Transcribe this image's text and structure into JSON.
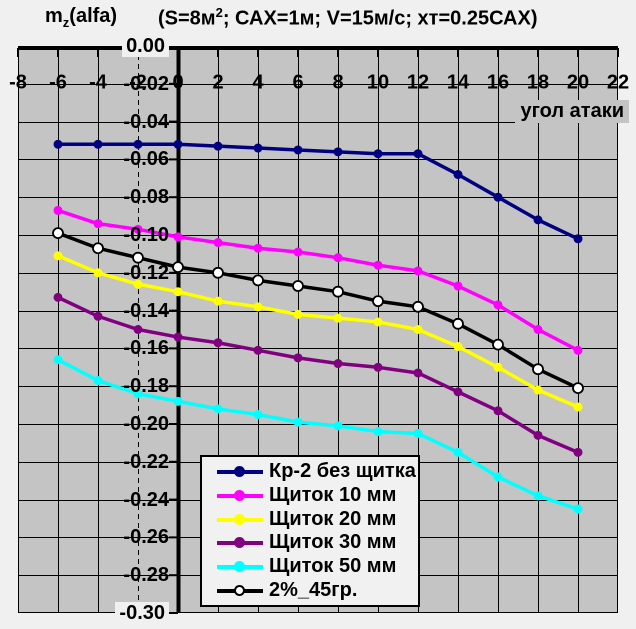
{
  "page_bg": "#f0f0f0",
  "title": {
    "m": "m",
    "sub": "z",
    "alfa": "(alfa)",
    "cond_pre": "(S=8м",
    "cond_sup": "2",
    "cond_post": "; САХ=1м; V=15м/с; хт=0.25САХ)"
  },
  "chart_data": {
    "type": "line",
    "title": "mz(alfa)  (S=8м²; САХ=1м; V=15м/с; хт=0.25САХ)",
    "xlabel": "угол атаки",
    "ylabel": "mz",
    "xlim": [
      -8,
      22
    ],
    "ylim": [
      -0.3,
      0.0
    ],
    "grid": true,
    "plot_bg": "#c4c4c4",
    "grid_color": "#000000",
    "legend_position": "inside-bottom-center",
    "x_ticks": [
      -8,
      -6,
      -4,
      -2,
      0,
      2,
      4,
      6,
      8,
      10,
      12,
      14,
      16,
      18,
      20,
      22
    ],
    "y_tick_labels": [
      "0.00",
      "-0.02",
      "-0.04",
      "-0.06",
      "-0.08",
      "-0.10",
      "-0.12",
      "-0.14",
      "-0.16",
      "-0.18",
      "-0.20",
      "-0.22",
      "-0.24",
      "-0.26",
      "-0.28",
      "-0.30"
    ],
    "x": [
      -6,
      -4,
      -2,
      0,
      2,
      4,
      6,
      8,
      10,
      12,
      14,
      16,
      18,
      20
    ],
    "series": [
      {
        "id": "kr2",
        "name": "Кр-2 без щитка",
        "color": "#000080",
        "marker": "circle",
        "marker_fill": "#000080",
        "values": [
          -0.052,
          -0.052,
          -0.052,
          -0.052,
          -0.053,
          -0.054,
          -0.055,
          -0.056,
          -0.057,
          -0.057,
          -0.068,
          -0.08,
          -0.092,
          -0.102
        ]
      },
      {
        "id": "s10",
        "name": "Щиток 10 мм",
        "color": "#ff00ff",
        "marker": "circle",
        "marker_fill": "#ff00ff",
        "values": [
          -0.087,
          -0.094,
          -0.097,
          -0.101,
          -0.104,
          -0.107,
          -0.109,
          -0.112,
          -0.116,
          -0.119,
          -0.127,
          -0.137,
          -0.15,
          -0.161
        ]
      },
      {
        "id": "s20",
        "name": "Щиток 20 мм",
        "color": "#ffff00",
        "marker": "circle",
        "marker_fill": "#ffff00",
        "values": [
          -0.111,
          -0.12,
          -0.126,
          -0.13,
          -0.135,
          -0.138,
          -0.142,
          -0.144,
          -0.146,
          -0.15,
          -0.159,
          -0.17,
          -0.182,
          -0.191
        ]
      },
      {
        "id": "s30",
        "name": "Щиток 30 мм",
        "color": "#800080",
        "marker": "circle",
        "marker_fill": "#800080",
        "values": [
          -0.133,
          -0.143,
          -0.15,
          -0.154,
          -0.157,
          -0.161,
          -0.165,
          -0.168,
          -0.17,
          -0.173,
          -0.183,
          -0.193,
          -0.206,
          -0.215
        ]
      },
      {
        "id": "s50",
        "name": "Щиток 50 мм",
        "color": "#00ffff",
        "marker": "circle",
        "marker_fill": "#00ffff",
        "values": [
          -0.166,
          -0.177,
          -0.184,
          -0.188,
          -0.192,
          -0.195,
          -0.199,
          -0.201,
          -0.204,
          -0.205,
          -0.215,
          -0.228,
          -0.238,
          -0.245
        ]
      },
      {
        "id": "p2",
        "name": "2%_45гр.",
        "color": "#000000",
        "marker": "circle",
        "marker_fill": "#ffffff",
        "marker_stroke": "#000000",
        "values": [
          -0.099,
          -0.107,
          -0.112,
          -0.117,
          -0.12,
          -0.124,
          -0.127,
          -0.13,
          -0.135,
          -0.138,
          -0.147,
          -0.158,
          -0.171,
          -0.181
        ]
      }
    ]
  }
}
